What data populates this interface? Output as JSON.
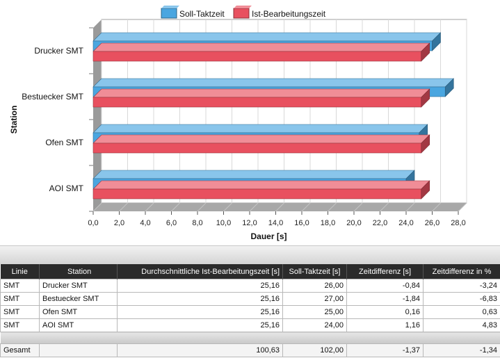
{
  "chart_data": {
    "type": "bar",
    "orientation": "horizontal",
    "categories": [
      "Drucker SMT",
      "Bestuecker SMT",
      "Ofen SMT",
      "AOI SMT"
    ],
    "series": [
      {
        "name": "Soll-Taktzeit",
        "values": [
          26.0,
          27.0,
          25.0,
          24.0
        ],
        "color": "#4aa6e0"
      },
      {
        "name": "Ist-Bearbeitungszeit",
        "values": [
          25.16,
          25.16,
          25.16,
          25.16
        ],
        "color": "#e8505f"
      }
    ],
    "xlabel": "Dauer [s]",
    "ylabel": "Station",
    "xlim": [
      0,
      28
    ],
    "xticks": [
      "0,0",
      "2,0",
      "4,0",
      "6,0",
      "8,0",
      "10,0",
      "12,0",
      "14,0",
      "16,0",
      "18,0",
      "20,0",
      "22,0",
      "24,0",
      "26,0",
      "28,0"
    ],
    "grid": true,
    "legend_position": "top",
    "style_3d": true
  },
  "table": {
    "headers": [
      "Linie",
      "Station",
      "Durchschnittliche Ist-Bearbeitungszeit [s]",
      "Soll-Taktzeit [s]",
      "Zeitdifferenz [s]",
      "Zeitdifferenz in %"
    ],
    "rows": [
      [
        "SMT",
        "Drucker SMT",
        "25,16",
        "26,00",
        "-0,84",
        "-3,24"
      ],
      [
        "SMT",
        "Bestuecker SMT",
        "25,16",
        "27,00",
        "-1,84",
        "-6,83"
      ],
      [
        "SMT",
        "Ofen SMT",
        "25,16",
        "25,00",
        "0,16",
        "0,63"
      ],
      [
        "SMT",
        "AOI SMT",
        "25,16",
        "24,00",
        "1,16",
        "4,83"
      ]
    ],
    "total": [
      "Gesamt",
      "",
      "100,63",
      "102,00",
      "-1,37",
      "-1,34"
    ]
  }
}
